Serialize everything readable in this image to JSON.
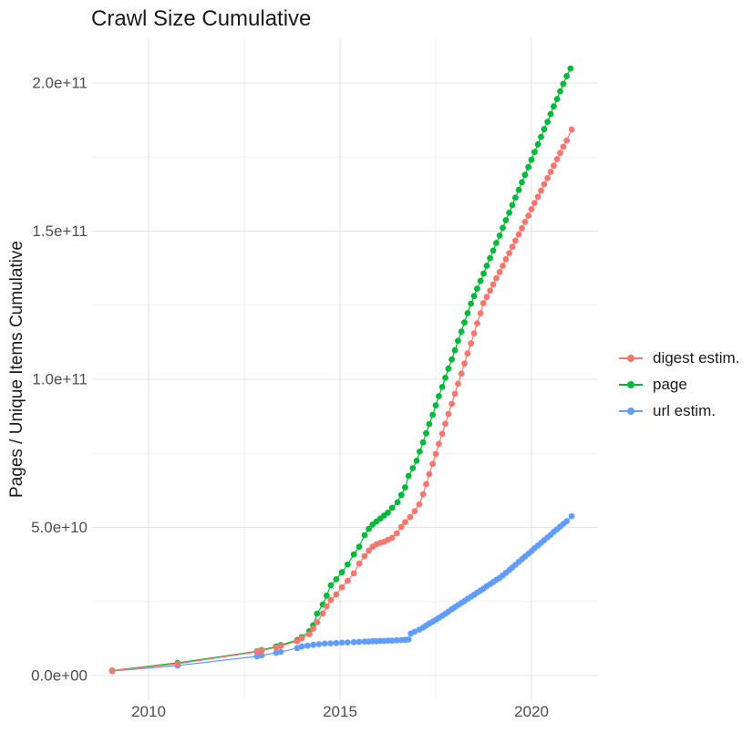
{
  "title": "Crawl Size Cumulative",
  "y_axis_title": "Pages / Unique Items Cumulative",
  "legend": {
    "items": [
      {
        "label": "digest estim.",
        "color": "#F8766D"
      },
      {
        "label": "page",
        "color": "#00BA38"
      },
      {
        "label": "url estim.",
        "color": "#619CFF"
      }
    ]
  },
  "chart_data": {
    "type": "scatter",
    "title": "Crawl Size Cumulative",
    "xlabel": "",
    "ylabel": "Pages / Unique Items Cumulative",
    "legend_position": "right",
    "grid": true,
    "x_unit": "year (decimal)",
    "y_unit": "pages / unique items, values stored in billions (1e9)",
    "xlim": [
      2008.5,
      2021.7
    ],
    "ylim_billions": [
      -8,
      215
    ],
    "x_ticks": [
      {
        "label": "2010",
        "value": 2010
      },
      {
        "label": "2015",
        "value": 2015
      },
      {
        "label": "2020",
        "value": 2020
      }
    ],
    "x_minor": [
      2012.5,
      2017.5
    ],
    "y_ticks": [
      {
        "label": "0.0e+00",
        "value": 0
      },
      {
        "label": "5.0e+10",
        "value": 50
      },
      {
        "label": "1.0e+11",
        "value": 100
      },
      {
        "label": "1.5e+11",
        "value": 150
      },
      {
        "label": "2.0e+11",
        "value": 200
      }
    ],
    "y_minor": [
      25,
      75,
      125,
      175
    ],
    "series": [
      {
        "name": "url estim.",
        "color": "#619CFF",
        "points": [
          [
            2009.05,
            1.5
          ],
          [
            2010.76,
            3.4
          ],
          [
            2012.83,
            6.5
          ],
          [
            2012.95,
            6.8
          ],
          [
            2013.33,
            7.7
          ],
          [
            2013.45,
            8.0
          ],
          [
            2013.88,
            9.3
          ],
          [
            2014.0,
            9.8
          ],
          [
            2014.15,
            10.1
          ],
          [
            2014.3,
            10.4
          ],
          [
            2014.45,
            10.6
          ],
          [
            2014.6,
            10.8
          ],
          [
            2014.75,
            10.9
          ],
          [
            2014.9,
            11.0
          ],
          [
            2015.05,
            11.1
          ],
          [
            2015.2,
            11.2
          ],
          [
            2015.36,
            11.3
          ],
          [
            2015.5,
            11.4
          ],
          [
            2015.64,
            11.5
          ],
          [
            2015.75,
            11.5
          ],
          [
            2015.85,
            11.6
          ],
          [
            2015.95,
            11.6
          ],
          [
            2016.05,
            11.7
          ],
          [
            2016.15,
            11.7
          ],
          [
            2016.25,
            11.8
          ],
          [
            2016.36,
            11.8
          ],
          [
            2016.48,
            11.9
          ],
          [
            2016.6,
            12.0
          ],
          [
            2016.7,
            12.1
          ],
          [
            2016.79,
            12.2
          ],
          [
            2016.85,
            14.2
          ],
          [
            2016.95,
            14.8
          ],
          [
            2017.07,
            15.5
          ],
          [
            2017.17,
            16.2
          ],
          [
            2017.25,
            16.9
          ],
          [
            2017.33,
            17.6
          ],
          [
            2017.42,
            18.2
          ],
          [
            2017.5,
            18.8
          ],
          [
            2017.58,
            19.5
          ],
          [
            2017.67,
            20.2
          ],
          [
            2017.75,
            20.9
          ],
          [
            2017.83,
            21.6
          ],
          [
            2017.92,
            22.4
          ],
          [
            2018.0,
            23.1
          ],
          [
            2018.08,
            23.8
          ],
          [
            2018.17,
            24.5
          ],
          [
            2018.25,
            25.2
          ],
          [
            2018.33,
            25.9
          ],
          [
            2018.42,
            26.6
          ],
          [
            2018.5,
            27.3
          ],
          [
            2018.58,
            28.0
          ],
          [
            2018.67,
            28.7
          ],
          [
            2018.75,
            29.4
          ],
          [
            2018.83,
            30.2
          ],
          [
            2018.92,
            30.9
          ],
          [
            2019.0,
            31.6
          ],
          [
            2019.08,
            32.3
          ],
          [
            2019.17,
            33.0
          ],
          [
            2019.25,
            33.8
          ],
          [
            2019.33,
            34.7
          ],
          [
            2019.42,
            35.6
          ],
          [
            2019.5,
            36.5
          ],
          [
            2019.58,
            37.4
          ],
          [
            2019.67,
            38.4
          ],
          [
            2019.75,
            39.3
          ],
          [
            2019.83,
            40.2
          ],
          [
            2019.92,
            41.1
          ],
          [
            2020.0,
            42.0
          ],
          [
            2020.08,
            43.0
          ],
          [
            2020.17,
            43.9
          ],
          [
            2020.25,
            44.8
          ],
          [
            2020.33,
            45.7
          ],
          [
            2020.42,
            46.6
          ],
          [
            2020.5,
            47.5
          ],
          [
            2020.58,
            48.5
          ],
          [
            2020.67,
            49.4
          ],
          [
            2020.75,
            50.3
          ],
          [
            2020.83,
            51.2
          ],
          [
            2020.92,
            52.1
          ],
          [
            2021.05,
            53.8
          ]
        ]
      },
      {
        "name": "page",
        "color": "#00BA38",
        "points": [
          [
            2009.05,
            1.7
          ],
          [
            2010.76,
            4.3
          ],
          [
            2012.83,
            8.2
          ],
          [
            2012.95,
            8.6
          ],
          [
            2013.33,
            9.8
          ],
          [
            2013.45,
            10.3
          ],
          [
            2013.88,
            12.0
          ],
          [
            2014.0,
            13.0
          ],
          [
            2014.2,
            15.0
          ],
          [
            2014.3,
            17.0
          ],
          [
            2014.4,
            20.9
          ],
          [
            2014.55,
            24.0
          ],
          [
            2014.65,
            27.0
          ],
          [
            2014.76,
            30.5
          ],
          [
            2014.9,
            32.5
          ],
          [
            2015.05,
            34.9
          ],
          [
            2015.2,
            37.5
          ],
          [
            2015.36,
            40.9
          ],
          [
            2015.5,
            43.5
          ],
          [
            2015.64,
            47.4
          ],
          [
            2015.75,
            49.5
          ],
          [
            2015.85,
            51.0
          ],
          [
            2015.95,
            52.0
          ],
          [
            2016.05,
            53.0
          ],
          [
            2016.15,
            54.0
          ],
          [
            2016.25,
            55.0
          ],
          [
            2016.36,
            56.6
          ],
          [
            2016.5,
            58.5
          ],
          [
            2016.6,
            61.0
          ],
          [
            2016.7,
            63.5
          ],
          [
            2016.79,
            67.4
          ],
          [
            2016.9,
            70.0
          ],
          [
            2017.0,
            72.5
          ],
          [
            2017.08,
            75.6
          ],
          [
            2017.17,
            78.7
          ],
          [
            2017.25,
            81.8
          ],
          [
            2017.33,
            84.9
          ],
          [
            2017.42,
            88.0
          ],
          [
            2017.5,
            91.2
          ],
          [
            2017.58,
            94.3
          ],
          [
            2017.67,
            97.4
          ],
          [
            2017.75,
            100.5
          ],
          [
            2017.83,
            103.6
          ],
          [
            2017.92,
            106.7
          ],
          [
            2018.0,
            109.8
          ],
          [
            2018.08,
            113.0
          ],
          [
            2018.17,
            116.1
          ],
          [
            2018.25,
            119.2
          ],
          [
            2018.33,
            122.3
          ],
          [
            2018.42,
            125.5
          ],
          [
            2018.5,
            128.1
          ],
          [
            2018.58,
            130.6
          ],
          [
            2018.67,
            133.2
          ],
          [
            2018.75,
            135.7
          ],
          [
            2018.83,
            138.3
          ],
          [
            2018.92,
            140.9
          ],
          [
            2019.0,
            143.4
          ],
          [
            2019.08,
            146.0
          ],
          [
            2019.17,
            148.5
          ],
          [
            2019.25,
            151.1
          ],
          [
            2019.33,
            153.7
          ],
          [
            2019.42,
            156.2
          ],
          [
            2019.5,
            158.8
          ],
          [
            2019.58,
            161.3
          ],
          [
            2019.67,
            163.9
          ],
          [
            2019.75,
            166.5
          ],
          [
            2019.83,
            169.0
          ],
          [
            2019.92,
            171.6
          ],
          [
            2020.0,
            174.1
          ],
          [
            2020.08,
            176.7
          ],
          [
            2020.17,
            179.3
          ],
          [
            2020.25,
            181.8
          ],
          [
            2020.33,
            184.4
          ],
          [
            2020.42,
            186.9
          ],
          [
            2020.5,
            189.5
          ],
          [
            2020.58,
            192.1
          ],
          [
            2020.67,
            194.6
          ],
          [
            2020.75,
            197.2
          ],
          [
            2020.83,
            199.7
          ],
          [
            2020.92,
            202.3
          ],
          [
            2021.02,
            204.9
          ]
        ]
      },
      {
        "name": "digest estim.",
        "color": "#F8766D",
        "points": [
          [
            2009.05,
            1.6
          ],
          [
            2010.76,
            4.0
          ],
          [
            2012.83,
            8.0
          ],
          [
            2012.95,
            8.4
          ],
          [
            2013.33,
            9.5
          ],
          [
            2013.45,
            10.0
          ],
          [
            2013.88,
            11.6
          ],
          [
            2014.0,
            12.6
          ],
          [
            2014.2,
            14.0
          ],
          [
            2014.3,
            15.8
          ],
          [
            2014.4,
            18.0
          ],
          [
            2014.55,
            21.0
          ],
          [
            2014.65,
            23.4
          ],
          [
            2014.76,
            25.5
          ],
          [
            2014.9,
            27.4
          ],
          [
            2015.05,
            29.8
          ],
          [
            2015.2,
            32.0
          ],
          [
            2015.36,
            34.5
          ],
          [
            2015.5,
            37.8
          ],
          [
            2015.64,
            40.3
          ],
          [
            2015.75,
            42.2
          ],
          [
            2015.85,
            43.5
          ],
          [
            2015.95,
            44.3
          ],
          [
            2016.05,
            44.8
          ],
          [
            2016.15,
            45.2
          ],
          [
            2016.25,
            45.8
          ],
          [
            2016.36,
            46.5
          ],
          [
            2016.48,
            48.0
          ],
          [
            2016.6,
            50.2
          ],
          [
            2016.7,
            51.8
          ],
          [
            2016.83,
            53.5
          ],
          [
            2016.95,
            55.5
          ],
          [
            2017.07,
            57.8
          ],
          [
            2017.17,
            61.2
          ],
          [
            2017.25,
            64.6
          ],
          [
            2017.33,
            68.0
          ],
          [
            2017.42,
            71.4
          ],
          [
            2017.5,
            74.8
          ],
          [
            2017.58,
            78.2
          ],
          [
            2017.67,
            81.6
          ],
          [
            2017.75,
            85.0
          ],
          [
            2017.83,
            88.3
          ],
          [
            2017.92,
            91.7
          ],
          [
            2018.0,
            95.1
          ],
          [
            2018.08,
            98.5
          ],
          [
            2018.17,
            101.9
          ],
          [
            2018.25,
            105.3
          ],
          [
            2018.33,
            108.7
          ],
          [
            2018.42,
            112.1
          ],
          [
            2018.5,
            115.5
          ],
          [
            2018.58,
            118.9
          ],
          [
            2018.67,
            122.3
          ],
          [
            2018.74,
            125.7
          ],
          [
            2018.83,
            127.8
          ],
          [
            2018.92,
            129.9
          ],
          [
            2019.0,
            132.0
          ],
          [
            2019.08,
            134.1
          ],
          [
            2019.17,
            136.2
          ],
          [
            2019.25,
            138.3
          ],
          [
            2019.33,
            140.5
          ],
          [
            2019.42,
            142.6
          ],
          [
            2019.5,
            144.7
          ],
          [
            2019.58,
            146.8
          ],
          [
            2019.67,
            148.9
          ],
          [
            2019.75,
            151.0
          ],
          [
            2019.83,
            153.1
          ],
          [
            2019.92,
            155.2
          ],
          [
            2020.0,
            157.4
          ],
          [
            2020.08,
            159.5
          ],
          [
            2020.17,
            161.6
          ],
          [
            2020.25,
            163.7
          ],
          [
            2020.33,
            165.8
          ],
          [
            2020.42,
            167.9
          ],
          [
            2020.5,
            170.0
          ],
          [
            2020.58,
            172.1
          ],
          [
            2020.67,
            174.3
          ],
          [
            2020.75,
            176.4
          ],
          [
            2020.83,
            178.5
          ],
          [
            2020.92,
            180.6
          ],
          [
            2021.05,
            184.3
          ]
        ]
      }
    ]
  }
}
